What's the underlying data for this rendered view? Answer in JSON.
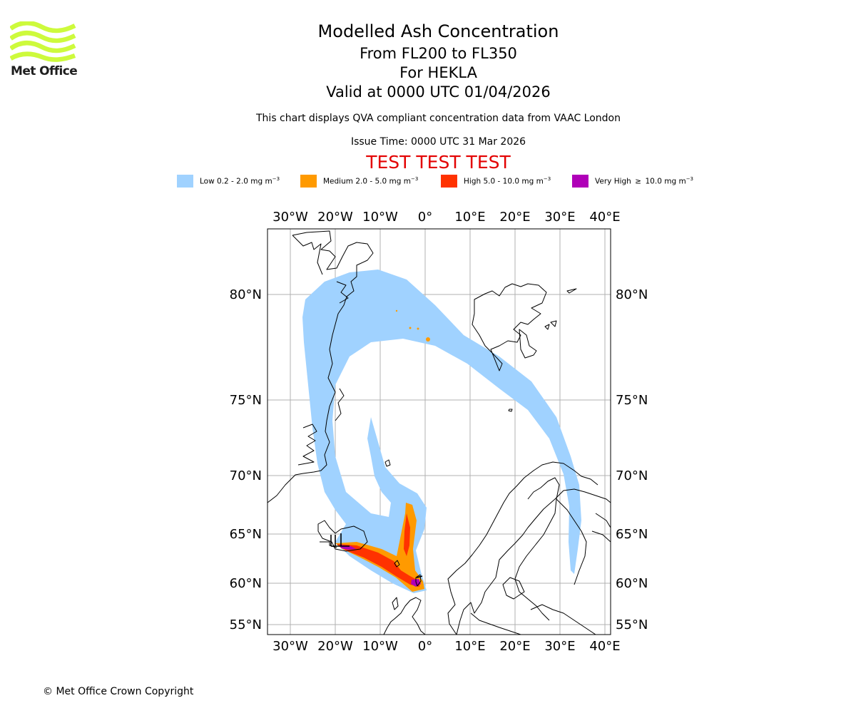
{
  "logo": {
    "name": "Met Office"
  },
  "titles": {
    "main": "Modelled Ash Concentration",
    "levels": "From FL200 to FL350",
    "volcano": "For HEKLA",
    "valid": "Valid at 0000 UTC 01/04/2026",
    "compliance": "This chart displays QVA compliant concentration data from VAAC London",
    "issue": "Issue Time: 0000 UTC 31 Mar 2026",
    "test": "TEST TEST TEST"
  },
  "legend": {
    "unit_prefix": "mg m",
    "unit_exp": "−3",
    "items": [
      {
        "label": "Low 0.2 - 2.0",
        "color": "#a0d2ff"
      },
      {
        "label": "Medium 2.0 - 5.0",
        "color": "#ff9a00"
      },
      {
        "label": "High 5.0 - 10.0",
        "color": "#ff3200"
      },
      {
        "label": "Very High  ≥  10.0",
        "color": "#b000b8"
      }
    ]
  },
  "axes": {
    "lon_labels": [
      "30°W",
      "20°W",
      "10°W",
      "0°",
      "10°E",
      "20°E",
      "30°E",
      "40°E"
    ],
    "lat_labels": [
      "80°N",
      "75°N",
      "70°N",
      "65°N",
      "60°N",
      "55°N"
    ]
  },
  "map_colors": {
    "coast": "#000000",
    "grid": "#b0b0b0",
    "logo_green": "#cdfa3c"
  },
  "copyright": "© Met Office Crown Copyright"
}
